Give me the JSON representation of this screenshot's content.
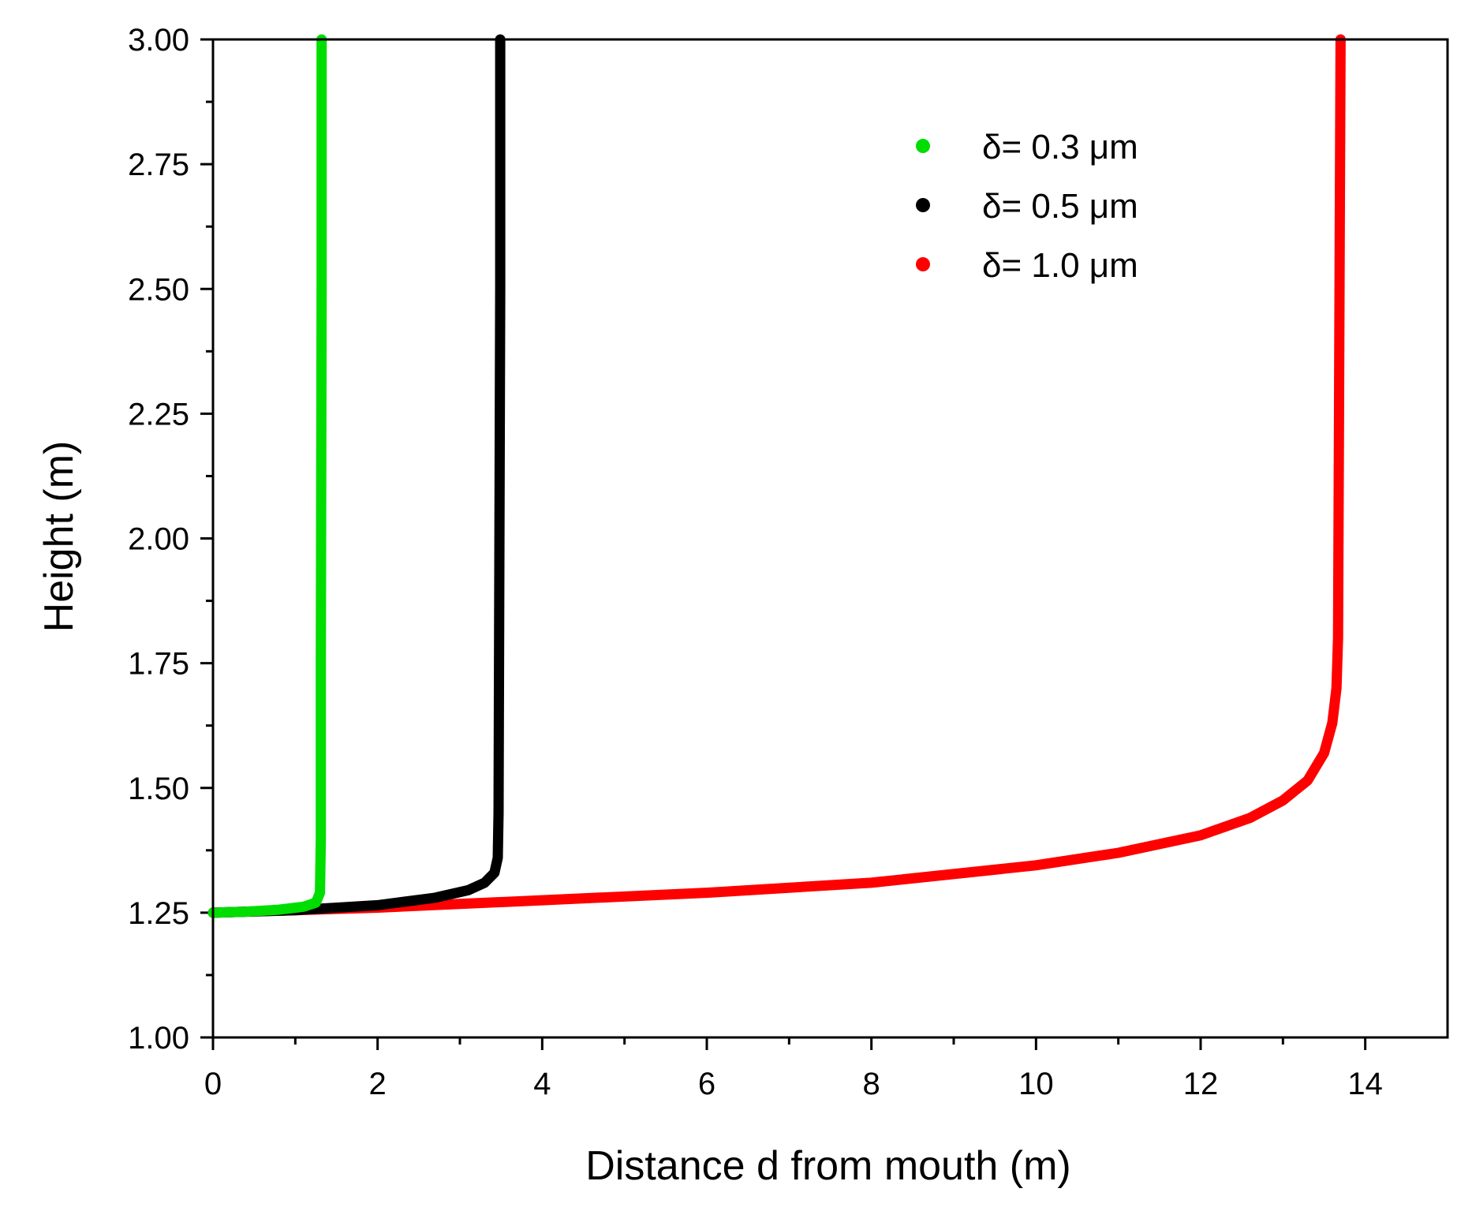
{
  "chart_data": {
    "type": "line",
    "title": "",
    "xlabel": "Distance d from mouth  (m)",
    "ylabel": "Height (m)",
    "xlim": [
      0,
      15
    ],
    "ylim": [
      1.0,
      3.0
    ],
    "x_ticks": [
      0,
      2,
      4,
      6,
      8,
      10,
      12,
      14
    ],
    "x_tick_labels": [
      "0",
      "2",
      "4",
      "6",
      "8",
      "10",
      "12",
      "14"
    ],
    "y_ticks": [
      1.0,
      1.25,
      1.5,
      1.75,
      2.0,
      2.25,
      2.5,
      2.75,
      3.0
    ],
    "y_tick_labels": [
      "1.00",
      "1.25",
      "1.50",
      "1.75",
      "2.00",
      "2.25",
      "2.50",
      "2.75",
      "3.00"
    ],
    "grid": false,
    "legend_position": "top-right",
    "series": [
      {
        "name": "δ= 0.3 μm",
        "color": "#00dd00",
        "points": [
          [
            0.0,
            1.25
          ],
          [
            0.4,
            1.252
          ],
          [
            0.8,
            1.256
          ],
          [
            1.1,
            1.262
          ],
          [
            1.25,
            1.27
          ],
          [
            1.3,
            1.29
          ],
          [
            1.31,
            1.4
          ],
          [
            1.31,
            1.75
          ],
          [
            1.32,
            2.5
          ],
          [
            1.32,
            3.0
          ]
        ]
      },
      {
        "name": "δ= 0.5 μm",
        "color": "#000000",
        "points": [
          [
            0.0,
            1.25
          ],
          [
            1.0,
            1.255
          ],
          [
            2.0,
            1.265
          ],
          [
            2.7,
            1.28
          ],
          [
            3.1,
            1.295
          ],
          [
            3.3,
            1.31
          ],
          [
            3.42,
            1.33
          ],
          [
            3.46,
            1.36
          ],
          [
            3.47,
            1.45
          ],
          [
            3.48,
            2.0
          ],
          [
            3.49,
            2.5
          ],
          [
            3.49,
            3.0
          ]
        ]
      },
      {
        "name": "δ= 1.0 μm",
        "color": "#ff0000",
        "points": [
          [
            0.0,
            1.25
          ],
          [
            2.0,
            1.26
          ],
          [
            4.0,
            1.275
          ],
          [
            6.0,
            1.29
          ],
          [
            8.0,
            1.31
          ],
          [
            10.0,
            1.345
          ],
          [
            11.0,
            1.37
          ],
          [
            12.0,
            1.405
          ],
          [
            12.6,
            1.44
          ],
          [
            13.0,
            1.475
          ],
          [
            13.3,
            1.515
          ],
          [
            13.5,
            1.57
          ],
          [
            13.6,
            1.63
          ],
          [
            13.65,
            1.7
          ],
          [
            13.67,
            1.8
          ],
          [
            13.68,
            2.2
          ],
          [
            13.69,
            2.6
          ],
          [
            13.7,
            3.0
          ]
        ]
      }
    ]
  }
}
